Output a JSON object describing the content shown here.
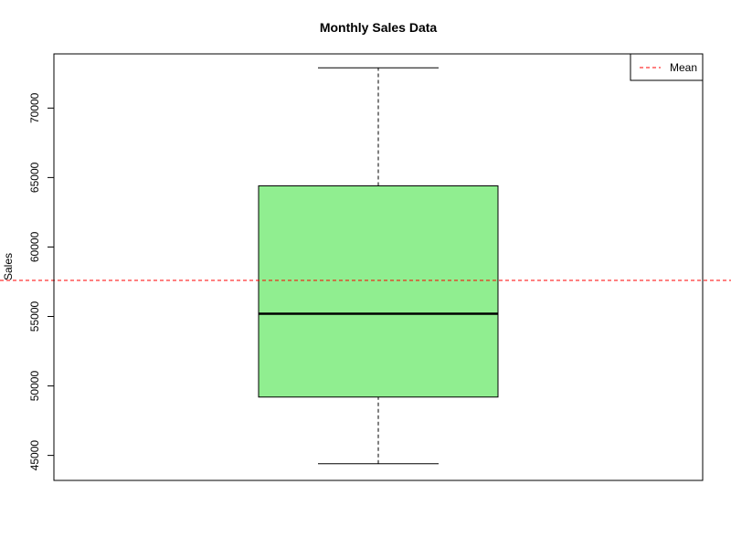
{
  "chart_data": {
    "type": "box",
    "title": "Monthly Sales Data",
    "xlabel": "",
    "ylabel": "Sales",
    "ylim": [
      43200,
      73900
    ],
    "y_ticks": [
      45000,
      50000,
      55000,
      60000,
      65000,
      70000
    ],
    "y_tick_labels": [
      "45000",
      "50000",
      "55000",
      "60000",
      "65000",
      "70000"
    ],
    "grid": false,
    "box": {
      "min": 44400,
      "q1": 49200,
      "median": 55200,
      "q3": 64400,
      "max": 72900
    },
    "mean": 57600,
    "legend": {
      "position": "top-right",
      "entries": [
        {
          "label": "Mean",
          "color": "#ff0000",
          "style": "dashed"
        }
      ]
    },
    "colors": {
      "box_fill": "#90ee90",
      "box_stroke": "#000000",
      "mean_line": "#ff0000"
    }
  }
}
